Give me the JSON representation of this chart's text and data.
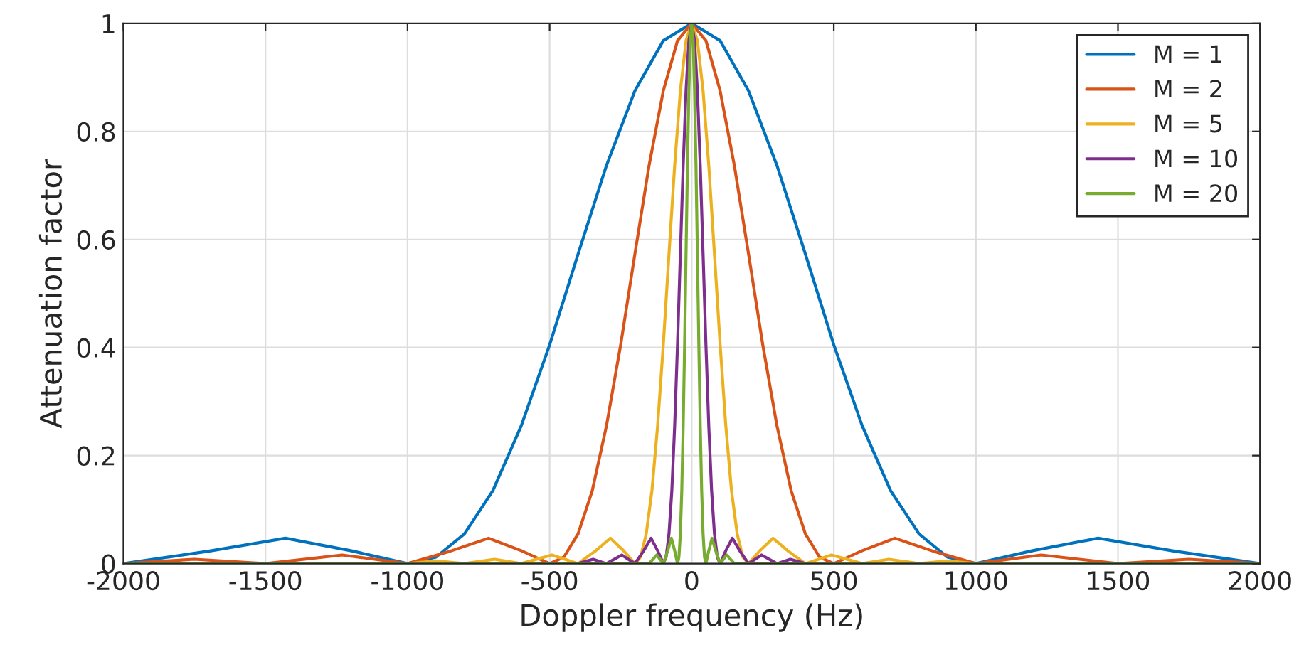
{
  "chart_data": {
    "type": "line",
    "xlabel": "Doppler frequency (Hz)",
    "ylabel": "Attenuation factor",
    "xlim": [
      -2000,
      2000
    ],
    "xticks": [
      -2000,
      -1500,
      -1000,
      -500,
      0,
      500,
      1000,
      1500,
      2000
    ],
    "ylim": [
      0,
      1
    ],
    "yticks": [
      0,
      0.2,
      0.4,
      0.6,
      0.8,
      1
    ],
    "grid": true,
    "legend": "top right",
    "marker": "none",
    "line_style": "solid",
    "series": [
      {
        "name": "M = 1",
        "color": "#0072bd",
        "x": [
          -2000,
          -1700,
          -1430,
          -1200,
          -1000,
          -900,
          -800,
          -700,
          -600,
          -500,
          -400,
          -300,
          -200,
          -100,
          0,
          100,
          200,
          300,
          400,
          500,
          600,
          700,
          800,
          900,
          1000,
          1200,
          1430,
          1700,
          2000
        ],
        "values": [
          0,
          0.023,
          0.047,
          0.024,
          0,
          0.012,
          0.055,
          0.135,
          0.255,
          0.405,
          0.573,
          0.737,
          0.875,
          0.968,
          1,
          0.968,
          0.875,
          0.737,
          0.573,
          0.405,
          0.255,
          0.135,
          0.055,
          0.012,
          0,
          0.024,
          0.047,
          0.023,
          0
        ]
      },
      {
        "name": "M = 2",
        "color": "#d95319",
        "x": [
          -2000,
          -1750,
          -1500,
          -1230,
          -1000,
          -850,
          -715,
          -600,
          -500,
          -450,
          -400,
          -350,
          -300,
          -250,
          -200,
          -150,
          -100,
          -50,
          0,
          50,
          100,
          150,
          200,
          250,
          300,
          350,
          400,
          450,
          500,
          600,
          715,
          850,
          1000,
          1230,
          1500,
          1750,
          2000
        ],
        "values": [
          0,
          0.008,
          0,
          0.016,
          0,
          0.023,
          0.047,
          0.024,
          0,
          0.012,
          0.055,
          0.135,
          0.255,
          0.405,
          0.573,
          0.737,
          0.875,
          0.968,
          1,
          0.968,
          0.875,
          0.737,
          0.573,
          0.405,
          0.255,
          0.135,
          0.055,
          0.012,
          0,
          0.024,
          0.047,
          0.023,
          0,
          0.016,
          0,
          0.008,
          0
        ]
      },
      {
        "name": "M = 5",
        "color": "#edb120",
        "x": [
          -2000,
          -1000,
          -900,
          -800,
          -694,
          -600,
          -492,
          -400,
          -340,
          -286,
          -240,
          -200,
          -180,
          -160,
          -140,
          -120,
          -100,
          -80,
          -60,
          -40,
          -20,
          0,
          20,
          40,
          60,
          80,
          100,
          120,
          140,
          160,
          180,
          200,
          240,
          286,
          340,
          400,
          492,
          600,
          694,
          800,
          900,
          1000,
          2000
        ],
        "values": [
          0,
          0,
          0.005,
          0,
          0.008,
          0,
          0.016,
          0,
          0.023,
          0.047,
          0.024,
          0,
          0.012,
          0.055,
          0.135,
          0.255,
          0.405,
          0.573,
          0.737,
          0.875,
          0.968,
          1,
          0.968,
          0.875,
          0.737,
          0.573,
          0.405,
          0.255,
          0.135,
          0.055,
          0.012,
          0,
          0.024,
          0.047,
          0.023,
          0,
          0.016,
          0,
          0.008,
          0,
          0.005,
          0,
          0
        ]
      },
      {
        "name": "M = 10",
        "color": "#7e2f8e",
        "x": [
          -2000,
          -400,
          -347,
          -300,
          -246,
          -200,
          -170,
          -143,
          -120,
          -100,
          -90,
          -80,
          -70,
          -60,
          -50,
          -40,
          -30,
          -20,
          -10,
          0,
          10,
          20,
          30,
          40,
          50,
          60,
          70,
          80,
          90,
          100,
          120,
          143,
          170,
          200,
          246,
          300,
          347,
          400,
          2000
        ],
        "values": [
          0,
          0,
          0.008,
          0,
          0.016,
          0,
          0.023,
          0.047,
          0.024,
          0,
          0.012,
          0.055,
          0.135,
          0.255,
          0.405,
          0.573,
          0.737,
          0.875,
          0.968,
          1,
          0.968,
          0.875,
          0.737,
          0.573,
          0.405,
          0.255,
          0.135,
          0.055,
          0.012,
          0,
          0.024,
          0.047,
          0.023,
          0,
          0.016,
          0,
          0.008,
          0,
          0
        ]
      },
      {
        "name": "M = 20",
        "color": "#77ac30",
        "x": [
          -2000,
          -150,
          -123,
          -100,
          -85,
          -71.5,
          -60,
          -50,
          -45,
          -40,
          -35,
          -30,
          -25,
          -20,
          -15,
          -10,
          -5,
          0,
          5,
          10,
          15,
          20,
          25,
          30,
          35,
          40,
          45,
          50,
          60,
          71.5,
          85,
          100,
          123,
          150,
          2000
        ],
        "values": [
          0,
          0,
          0.016,
          0,
          0.023,
          0.047,
          0.024,
          0,
          0.012,
          0.055,
          0.135,
          0.255,
          0.405,
          0.573,
          0.737,
          0.875,
          0.968,
          1,
          0.968,
          0.875,
          0.737,
          0.573,
          0.405,
          0.255,
          0.135,
          0.055,
          0.012,
          0,
          0.024,
          0.047,
          0.023,
          0,
          0.016,
          0,
          0
        ]
      }
    ]
  }
}
